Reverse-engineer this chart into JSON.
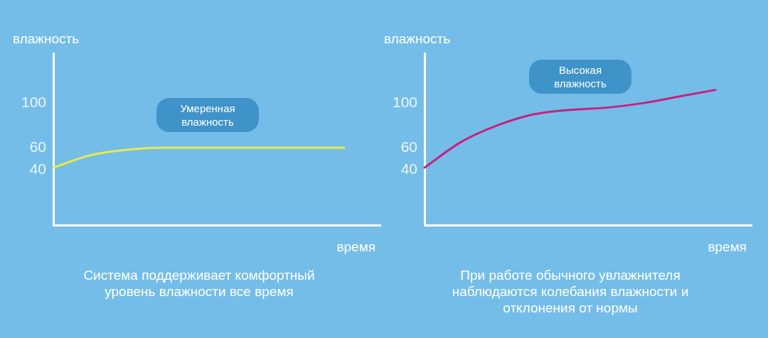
{
  "chart_data": [
    {
      "type": "line",
      "ylabel": "влажность",
      "xlabel": "время",
      "categories": [
        null,
        null,
        null,
        null,
        null,
        null,
        null,
        null,
        null,
        null
      ],
      "series": [
        {
          "color": "#e6ec4a",
          "values": [
            42,
            53,
            58,
            60,
            60,
            60,
            60,
            60,
            60,
            null
          ]
        }
      ],
      "ylim": [
        -10,
        145
      ],
      "yticks": [
        40,
        60,
        100
      ],
      "tick_labels": "y",
      "marker": "none",
      "line_style": "solid",
      "annotations": [
        "Умеренная влажность",
        "Система поддерживает комфортный уровень влажности все время"
      ]
    },
    {
      "type": "line",
      "ylabel": "влажность",
      "xlabel": "время",
      "categories": [
        null,
        null,
        null,
        null,
        null,
        null,
        null,
        null,
        null,
        null
      ],
      "series": [
        {
          "color": "#c8207e",
          "values": [
            42,
            65,
            80,
            90,
            94,
            96,
            100,
            106,
            112,
            null
          ]
        }
      ],
      "ylim": [
        -10,
        145
      ],
      "yticks": [
        40,
        60,
        100
      ],
      "tick_labels": "y",
      "marker": "none",
      "line_style": "solid",
      "annotations": [
        "Высокая влажность",
        "При работе обычного увлажнителя наблюдаются колебания влажности и отклонения от нормы"
      ]
    }
  ]
}
